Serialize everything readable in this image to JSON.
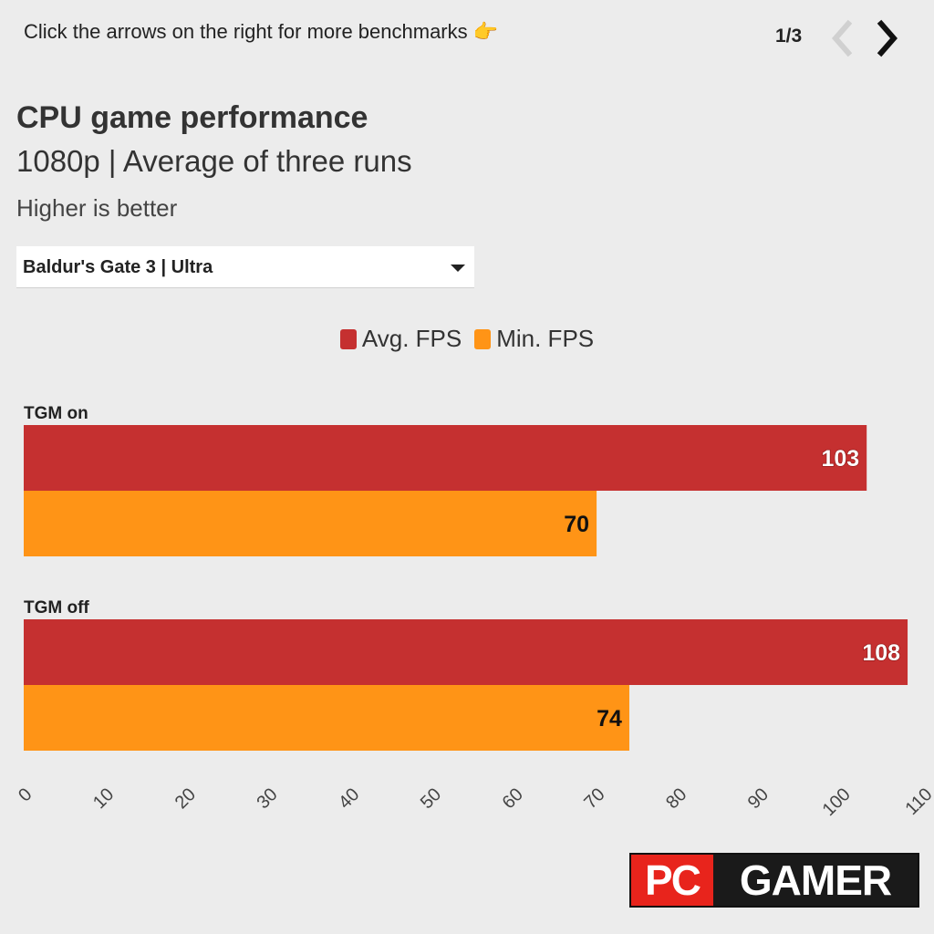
{
  "header": {
    "hint": "Click the arrows on the right for more benchmarks 👉",
    "pager": "1/3",
    "prev_icon": "chevron-left-icon",
    "next_icon": "chevron-right-icon"
  },
  "selector": {
    "selected": "Baldur's Gate 3 | Ultra",
    "icon": "caret-down-icon"
  },
  "logo": {
    "left": "PC",
    "right": "GAMER"
  },
  "chart_data": {
    "type": "bar",
    "orientation": "horizontal",
    "title": "CPU game performance",
    "subtitle": "1080p | Average of three runs",
    "note": "Higher is better",
    "categories": [
      "TGM on",
      "TGM off"
    ],
    "series": [
      {
        "name": "Avg. FPS",
        "color": "#c53030",
        "values": [
          103,
          108
        ]
      },
      {
        "name": "Min. FPS",
        "color": "#ff9416",
        "values": [
          70,
          74
        ]
      }
    ],
    "xlim": [
      0,
      110
    ],
    "xticks": [
      0,
      10,
      20,
      30,
      40,
      50,
      60,
      70,
      80,
      90,
      100,
      110
    ],
    "legend_position": "top-center",
    "grid": false
  }
}
